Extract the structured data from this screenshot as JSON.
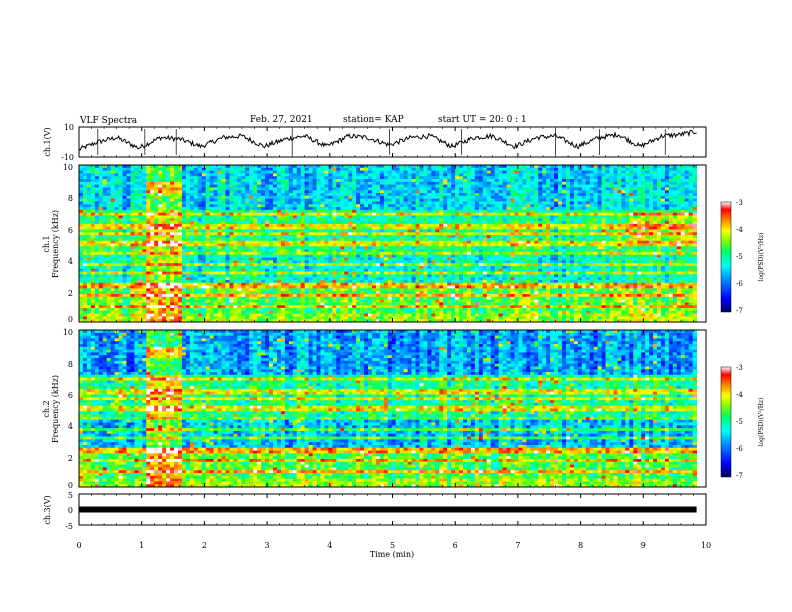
{
  "header": {
    "title": "VLF Spectra",
    "date": "Feb. 27, 2021",
    "station": "station= KAP",
    "start": "start  UT  =   20: 0   : 1"
  },
  "colors": {
    "scale": [
      "#000000",
      "#00007f",
      "#0000ff",
      "#0080ff",
      "#00ffff",
      "#00ff80",
      "#80ff00",
      "#ffff00",
      "#ff8000",
      "#ff0000",
      "#ffffff"
    ],
    "trace": "#000000",
    "frame": "#000000"
  },
  "chart_data": [
    {
      "type": "line",
      "panel": "ch1-waveform",
      "ylabel": "ch.1(V)",
      "ylim": [
        -10,
        10
      ],
      "yticks": [
        "10",
        "-10"
      ],
      "xlim": [
        0,
        10
      ],
      "series": [
        {
          "x": [
            0.0,
            0.3,
            0.6,
            0.95,
            1.3,
            1.6,
            1.95,
            2.3,
            2.6,
            2.95,
            3.3,
            3.6,
            3.95,
            4.3,
            4.6,
            4.95,
            5.3,
            5.6,
            5.95,
            6.3,
            6.6,
            6.95,
            7.3,
            7.6,
            7.95,
            8.3,
            8.6,
            8.95,
            9.3,
            9.6,
            9.85
          ],
          "y": [
            -5,
            0,
            3,
            -4,
            3,
            2,
            -3,
            3,
            4,
            -3,
            2,
            4,
            -3,
            4,
            3,
            -2,
            3,
            4,
            -3,
            3,
            4,
            -3,
            3,
            4,
            -3,
            3,
            5,
            -3,
            4,
            5,
            7
          ]
        }
      ]
    },
    {
      "type": "heatmap",
      "panel": "ch1-spectrogram",
      "ylabel": "ch.1\nFrequency (kHz)",
      "ylim": [
        0,
        10
      ],
      "yticks": [
        "0",
        "2",
        "4",
        "6",
        "8",
        "10"
      ],
      "xlim": [
        0,
        10
      ],
      "colorbar": {
        "label": "log(PSD)(V²/Hz)",
        "range": [
          -7,
          -3
        ],
        "ticks": [
          "-3",
          "-4",
          "-5",
          "-6",
          "-7"
        ]
      },
      "band_features": [
        {
          "x_range": [
            1.05,
            1.65
          ],
          "y_range": [
            0,
            10
          ],
          "level": "elevated"
        },
        {
          "x_range": [
            8.8,
            9.85
          ],
          "y_range": [
            5,
            7
          ],
          "level": "elevated"
        }
      ]
    },
    {
      "type": "heatmap",
      "panel": "ch2-spectrogram",
      "ylabel": "ch.2\nFrequency (kHz)",
      "ylim": [
        0,
        10
      ],
      "yticks": [
        "0",
        "2",
        "4",
        "6",
        "8",
        "10"
      ],
      "xlim": [
        0,
        10
      ],
      "colorbar": {
        "label": "log(PSD)(V²/Hz)",
        "range": [
          -7,
          -3
        ],
        "ticks": [
          "-3",
          "-4",
          "-5",
          "-6",
          "-7"
        ]
      },
      "band_features": [
        {
          "x_range": [
            1.05,
            1.65
          ],
          "y_range": [
            0,
            10
          ],
          "level": "elevated"
        }
      ]
    },
    {
      "type": "line",
      "panel": "ch3-waveform",
      "ylabel": "ch.3(V)",
      "ylim": [
        -5,
        5
      ],
      "yticks": [
        "5",
        "0",
        "-5"
      ],
      "xlim": [
        0,
        10
      ],
      "xlabel": "Time  (min)",
      "xticks": [
        "0",
        "1",
        "2",
        "3",
        "4",
        "5",
        "6",
        "7",
        "8",
        "9",
        "10"
      ],
      "series": [
        {
          "x": [
            0,
            9.85
          ],
          "y": [
            0,
            0
          ]
        }
      ]
    }
  ]
}
